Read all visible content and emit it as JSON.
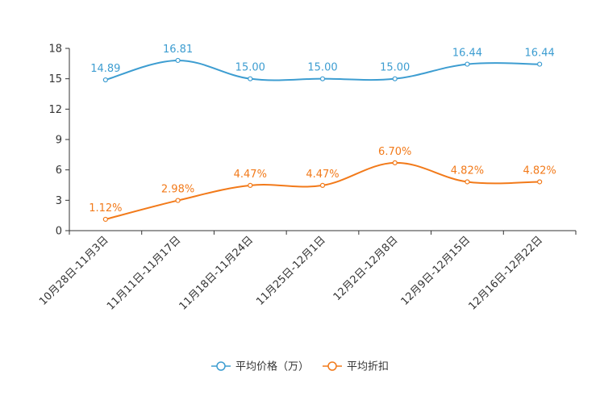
{
  "chart_data": {
    "type": "line",
    "categories": [
      "10月28日-11月3日",
      "11月11日-11月17日",
      "11月18日-11月24日",
      "11月25日-12月1日",
      "12月2日-12月8日",
      "12月9日-12月15日",
      "12月16日-12月22日"
    ],
    "series": [
      {
        "name": "平均价格（万）",
        "values": [
          14.89,
          16.81,
          15.0,
          15.0,
          15.0,
          16.44,
          16.44
        ],
        "labels": [
          "14.89",
          "16.81",
          "15.00",
          "15.00",
          "15.00",
          "16.44",
          "16.44"
        ],
        "color": "#3d9dd1"
      },
      {
        "name": "平均折扣",
        "values": [
          1.12,
          2.98,
          4.47,
          4.47,
          6.7,
          4.82,
          4.82
        ],
        "labels": [
          "1.12%",
          "2.98%",
          "4.47%",
          "4.47%",
          "6.70%",
          "4.82%",
          "4.82%"
        ],
        "color": "#f27a1a"
      }
    ],
    "yticks": [
      "0",
      "3",
      "6",
      "9",
      "12",
      "15",
      "18"
    ],
    "ylim": [
      0,
      18
    ],
    "title": "",
    "xlabel": "",
    "ylabel": "",
    "legend_position": "bottom-center",
    "grid": false
  }
}
